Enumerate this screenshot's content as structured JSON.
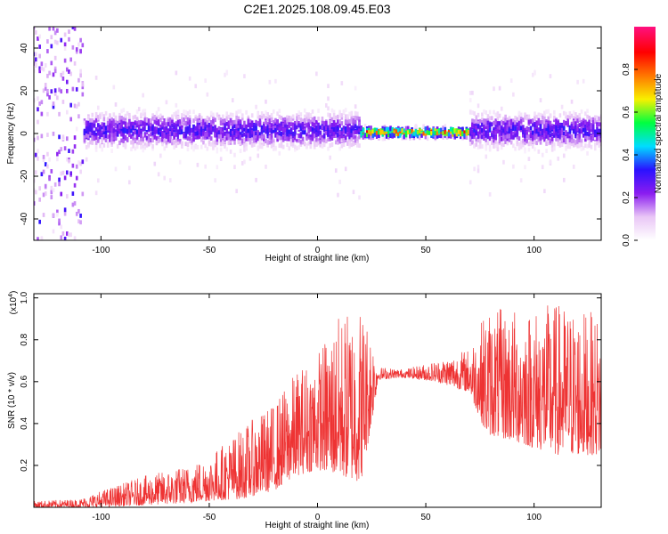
{
  "title": "C2E1.2025.108.09.45.E03",
  "chart_data": [
    {
      "type": "heatmap",
      "xlabel": "Height of straight line (km)",
      "ylabel": "Frequency (Hz)",
      "xlim": [
        -131,
        131
      ],
      "ylim": [
        -50,
        50
      ],
      "x_ticks": [
        -100,
        -50,
        0,
        50,
        100
      ],
      "y_ticks": [
        -40,
        -20,
        0,
        20,
        40
      ],
      "colorbar": {
        "label": "Normalized spectral amplitude",
        "range": [
          0,
          1
        ],
        "ticks": [
          0.0,
          0.2,
          0.4,
          0.6,
          0.8
        ],
        "colormap": [
          "#ffffff",
          "#e9c6f6",
          "#8a1cf0",
          "#2a12ff",
          "#00ddff",
          "#00ff40",
          "#f8f000",
          "#ff7700",
          "#ff0000",
          "#ff1080"
        ]
      },
      "regions": [
        {
          "x_from": -131,
          "x_to": -108,
          "freq_center": 0,
          "freq_spread": 50,
          "amplitude": 0.15
        },
        {
          "x_from": -108,
          "x_to": 20,
          "freq_center": 1.5,
          "freq_spread": 10,
          "amplitude": 0.35
        },
        {
          "x_from": 20,
          "x_to": 70,
          "freq_center": 0.5,
          "freq_spread": 3,
          "amplitude": 0.9
        },
        {
          "x_from": 70,
          "x_to": 131,
          "freq_center": 1.5,
          "freq_spread": 10,
          "amplitude": 0.35
        }
      ]
    },
    {
      "type": "line",
      "xlabel": "Height of straight line (km)",
      "ylabel": "SNR (10 * v/v)",
      "y_multiplier": "(x10",
      "y_multiplier_exp": "4",
      "y_multiplier_close": ")",
      "xlim": [
        -131,
        131
      ],
      "ylim": [
        0,
        1.02
      ],
      "x_ticks": [
        -100,
        -50,
        0,
        50,
        100
      ],
      "y_ticks": [
        0.2,
        0.4,
        0.6,
        0.8,
        1.0
      ],
      "series": [
        {
          "color": "#ee3333",
          "envelope": [
            {
              "x": -131,
              "low": 0.0,
              "high": 0.03
            },
            {
              "x": -110,
              "low": 0.0,
              "high": 0.04
            },
            {
              "x": -100,
              "low": 0.0,
              "high": 0.08
            },
            {
              "x": -80,
              "low": 0.01,
              "high": 0.15
            },
            {
              "x": -60,
              "low": 0.02,
              "high": 0.2
            },
            {
              "x": -50,
              "low": 0.03,
              "high": 0.25
            },
            {
              "x": -35,
              "low": 0.04,
              "high": 0.38
            },
            {
              "x": -20,
              "low": 0.08,
              "high": 0.5
            },
            {
              "x": -10,
              "low": 0.15,
              "high": 0.65
            },
            {
              "x": 0,
              "low": 0.18,
              "high": 0.75
            },
            {
              "x": 10,
              "low": 0.15,
              "high": 0.92
            },
            {
              "x": 20,
              "low": 0.12,
              "high": 0.98
            },
            {
              "x": 25,
              "low": 0.4,
              "high": 0.85
            },
            {
              "x": 28,
              "low": 0.61,
              "high": 0.67
            },
            {
              "x": 40,
              "low": 0.62,
              "high": 0.66
            },
            {
              "x": 55,
              "low": 0.6,
              "high": 0.7
            },
            {
              "x": 70,
              "low": 0.55,
              "high": 0.76
            },
            {
              "x": 78,
              "low": 0.35,
              "high": 0.95
            },
            {
              "x": 95,
              "low": 0.3,
              "high": 0.95
            },
            {
              "x": 110,
              "low": 0.25,
              "high": 0.98
            },
            {
              "x": 131,
              "low": 0.25,
              "high": 0.92
            }
          ]
        }
      ]
    }
  ]
}
